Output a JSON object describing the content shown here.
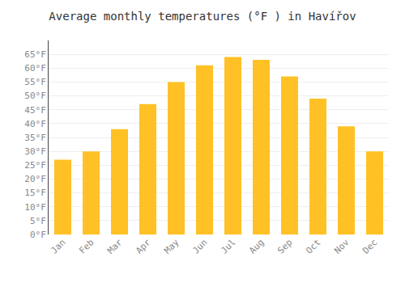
{
  "chart_data": {
    "type": "bar",
    "title": "Average monthly temperatures (°F ) in Havířov",
    "categories": [
      "Jan",
      "Feb",
      "Mar",
      "Apr",
      "May",
      "Jun",
      "Jul",
      "Aug",
      "Sep",
      "Oct",
      "Nov",
      "Dec"
    ],
    "values": [
      27,
      30,
      38,
      47,
      55,
      61,
      64,
      63,
      57,
      49,
      39,
      30
    ],
    "color": "#FFC125",
    "ylim": [
      0,
      70
    ],
    "yticks": [
      {
        "value": 0,
        "label": "0°F"
      },
      {
        "value": 5,
        "label": "5°F"
      },
      {
        "value": 10,
        "label": "10°F"
      },
      {
        "value": 15,
        "label": "15°F"
      },
      {
        "value": 20,
        "label": "20°F"
      },
      {
        "value": 25,
        "label": "25°F"
      },
      {
        "value": 30,
        "label": "30°F"
      },
      {
        "value": 35,
        "label": "35°F"
      },
      {
        "value": 40,
        "label": "40°F"
      },
      {
        "value": 45,
        "label": "45°F"
      },
      {
        "value": 50,
        "label": "50°F"
      },
      {
        "value": 55,
        "label": "55°F"
      },
      {
        "value": 60,
        "label": "60°F"
      },
      {
        "value": 65,
        "label": "65°F"
      }
    ],
    "grid": true
  }
}
